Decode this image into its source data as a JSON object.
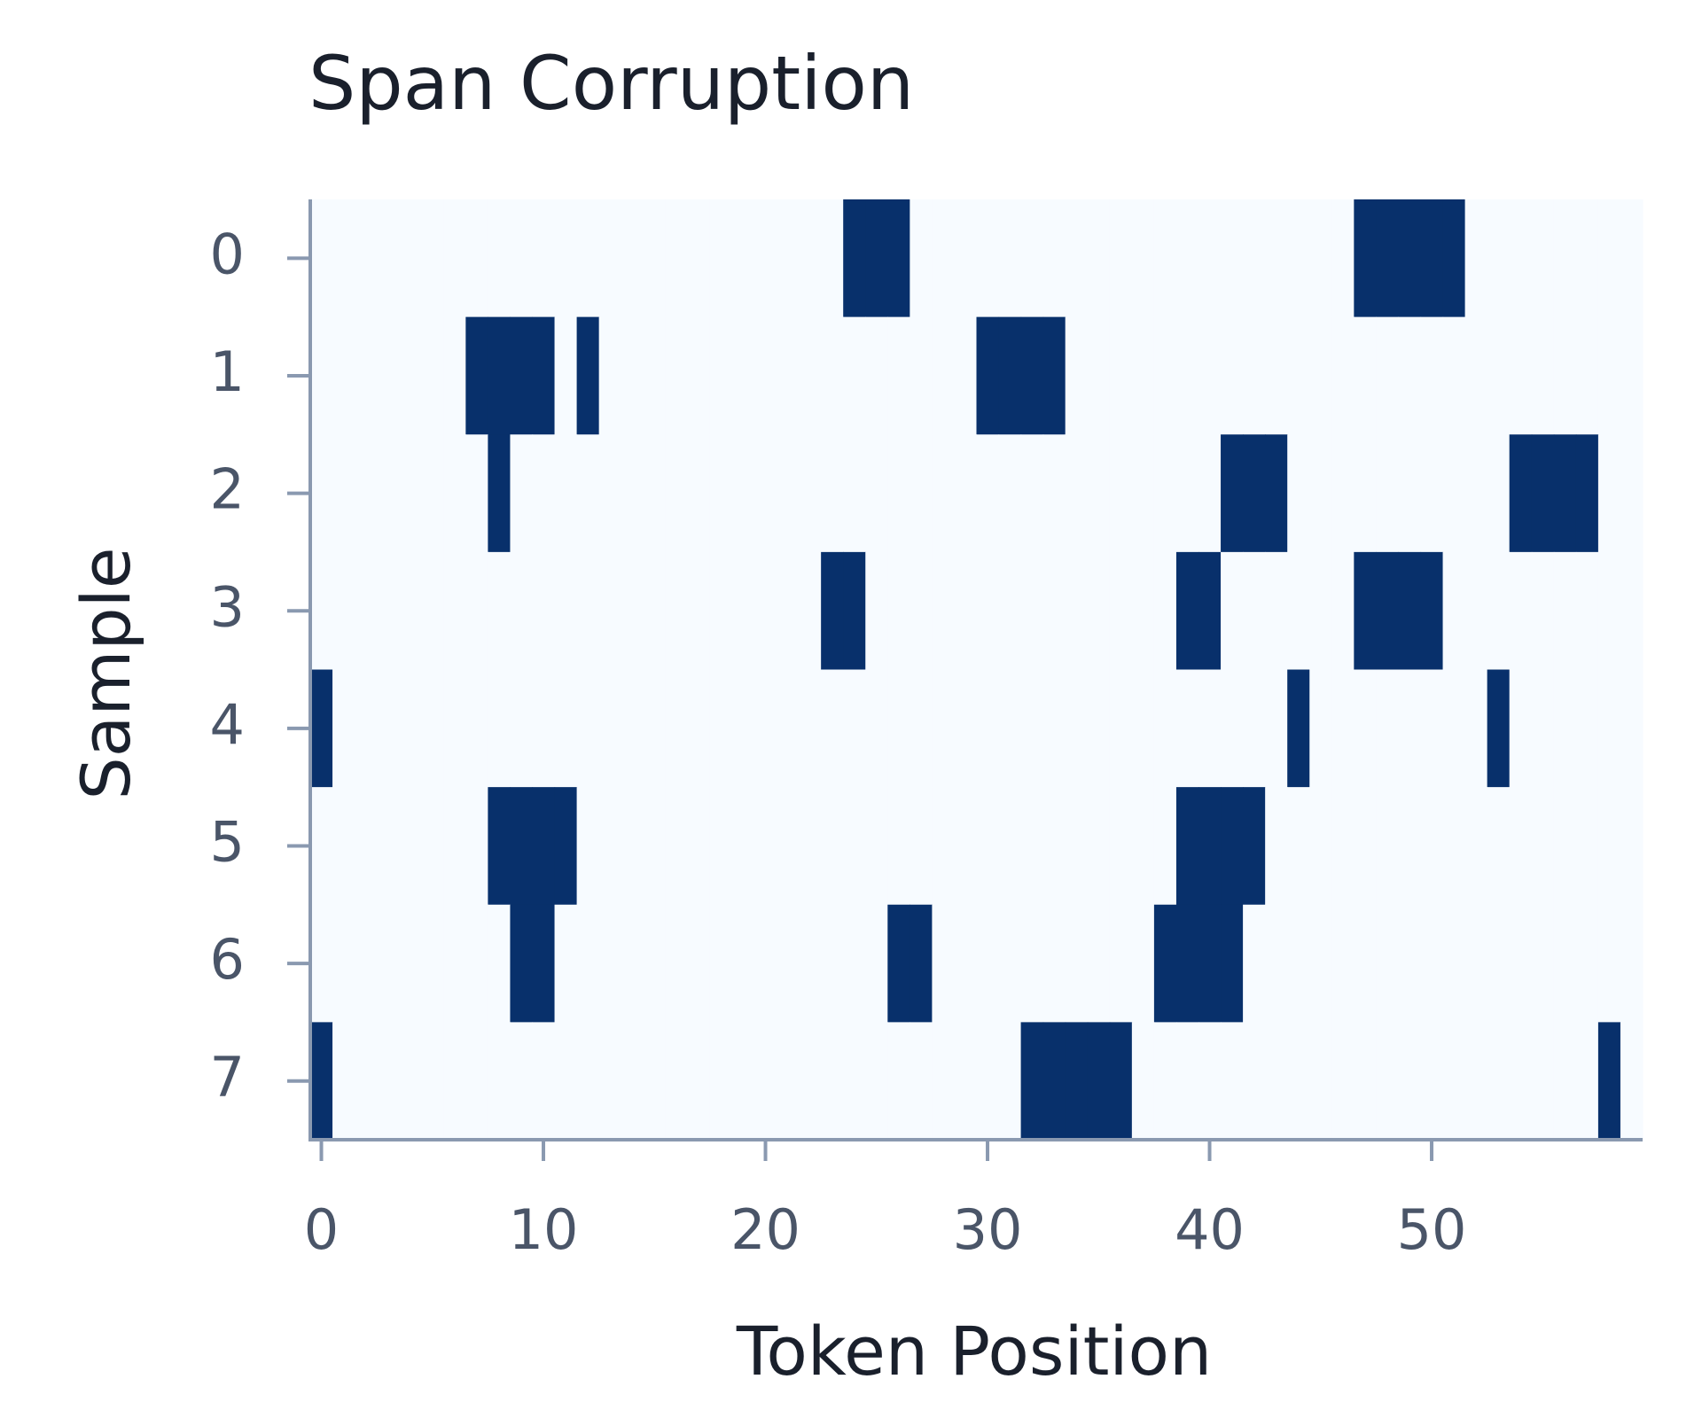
{
  "chart_data": {
    "type": "heatmap",
    "title": "Span Corruption",
    "xlabel": "Token Position",
    "ylabel": "Sample",
    "xlim": [
      -0.5,
      59.5
    ],
    "xticks": [
      0,
      10,
      20,
      30,
      40,
      50
    ],
    "ylim": [
      7.5,
      -0.5
    ],
    "yticks": [
      0,
      1,
      2,
      3,
      4,
      5,
      6,
      7
    ],
    "colormap": [
      "#f7fbff",
      "#08306b"
    ],
    "z": [
      [
        0,
        0,
        0,
        0,
        0,
        0,
        0,
        0,
        0,
        0,
        0,
        0,
        0,
        0,
        0,
        0,
        0,
        0,
        0,
        0,
        0,
        0,
        0,
        0,
        1,
        1,
        1,
        0,
        0,
        0,
        0,
        0,
        0,
        0,
        0,
        0,
        0,
        0,
        0,
        0,
        0,
        0,
        0,
        0,
        0,
        0,
        0,
        1,
        1,
        1,
        1,
        1,
        0,
        0,
        0,
        0,
        0,
        0,
        0,
        0
      ],
      [
        0,
        0,
        0,
        0,
        0,
        0,
        0,
        1,
        1,
        1,
        1,
        0,
        1,
        0,
        0,
        0,
        0,
        0,
        0,
        0,
        0,
        0,
        0,
        0,
        0,
        0,
        0,
        0,
        0,
        0,
        1,
        1,
        1,
        1,
        0,
        0,
        0,
        0,
        0,
        0,
        0,
        0,
        0,
        0,
        0,
        0,
        0,
        0,
        0,
        0,
        0,
        0,
        0,
        0,
        0,
        0,
        0,
        0,
        0,
        0
      ],
      [
        0,
        0,
        0,
        0,
        0,
        0,
        0,
        0,
        1,
        0,
        0,
        0,
        0,
        0,
        0,
        0,
        0,
        0,
        0,
        0,
        0,
        0,
        0,
        0,
        0,
        0,
        0,
        0,
        0,
        0,
        0,
        0,
        0,
        0,
        0,
        0,
        0,
        0,
        0,
        0,
        0,
        1,
        1,
        1,
        0,
        0,
        0,
        0,
        0,
        0,
        0,
        0,
        0,
        0,
        1,
        1,
        1,
        1,
        0,
        0
      ],
      [
        0,
        0,
        0,
        0,
        0,
        0,
        0,
        0,
        0,
        0,
        0,
        0,
        0,
        0,
        0,
        0,
        0,
        0,
        0,
        0,
        0,
        0,
        0,
        1,
        1,
        0,
        0,
        0,
        0,
        0,
        0,
        0,
        0,
        0,
        0,
        0,
        0,
        0,
        0,
        1,
        1,
        0,
        0,
        0,
        0,
        0,
        0,
        1,
        1,
        1,
        1,
        0,
        0,
        0,
        0,
        0,
        0,
        0,
        0,
        0
      ],
      [
        1,
        0,
        0,
        0,
        0,
        0,
        0,
        0,
        0,
        0,
        0,
        0,
        0,
        0,
        0,
        0,
        0,
        0,
        0,
        0,
        0,
        0,
        0,
        0,
        0,
        0,
        0,
        0,
        0,
        0,
        0,
        0,
        0,
        0,
        0,
        0,
        0,
        0,
        0,
        0,
        0,
        0,
        0,
        0,
        1,
        0,
        0,
        0,
        0,
        0,
        0,
        0,
        0,
        1,
        0,
        0,
        0,
        0,
        0,
        0
      ],
      [
        0,
        0,
        0,
        0,
        0,
        0,
        0,
        0,
        1,
        1,
        1,
        1,
        0,
        0,
        0,
        0,
        0,
        0,
        0,
        0,
        0,
        0,
        0,
        0,
        0,
        0,
        0,
        0,
        0,
        0,
        0,
        0,
        0,
        0,
        0,
        0,
        0,
        0,
        0,
        1,
        1,
        1,
        1,
        0,
        0,
        0,
        0,
        0,
        0,
        0,
        0,
        0,
        0,
        0,
        0,
        0,
        0,
        0,
        0,
        0
      ],
      [
        0,
        0,
        0,
        0,
        0,
        0,
        0,
        0,
        0,
        1,
        1,
        0,
        0,
        0,
        0,
        0,
        0,
        0,
        0,
        0,
        0,
        0,
        0,
        0,
        0,
        0,
        1,
        1,
        0,
        0,
        0,
        0,
        0,
        0,
        0,
        0,
        0,
        0,
        1,
        1,
        1,
        1,
        0,
        0,
        0,
        0,
        0,
        0,
        0,
        0,
        0,
        0,
        0,
        0,
        0,
        0,
        0,
        0,
        0,
        0
      ],
      [
        1,
        0,
        0,
        0,
        0,
        0,
        0,
        0,
        0,
        0,
        0,
        0,
        0,
        0,
        0,
        0,
        0,
        0,
        0,
        0,
        0,
        0,
        0,
        0,
        0,
        0,
        0,
        0,
        0,
        0,
        0,
        0,
        1,
        1,
        1,
        1,
        1,
        0,
        0,
        0,
        0,
        0,
        0,
        0,
        0,
        0,
        0,
        0,
        0,
        0,
        0,
        0,
        0,
        0,
        0,
        0,
        0,
        0,
        1,
        0
      ]
    ]
  }
}
